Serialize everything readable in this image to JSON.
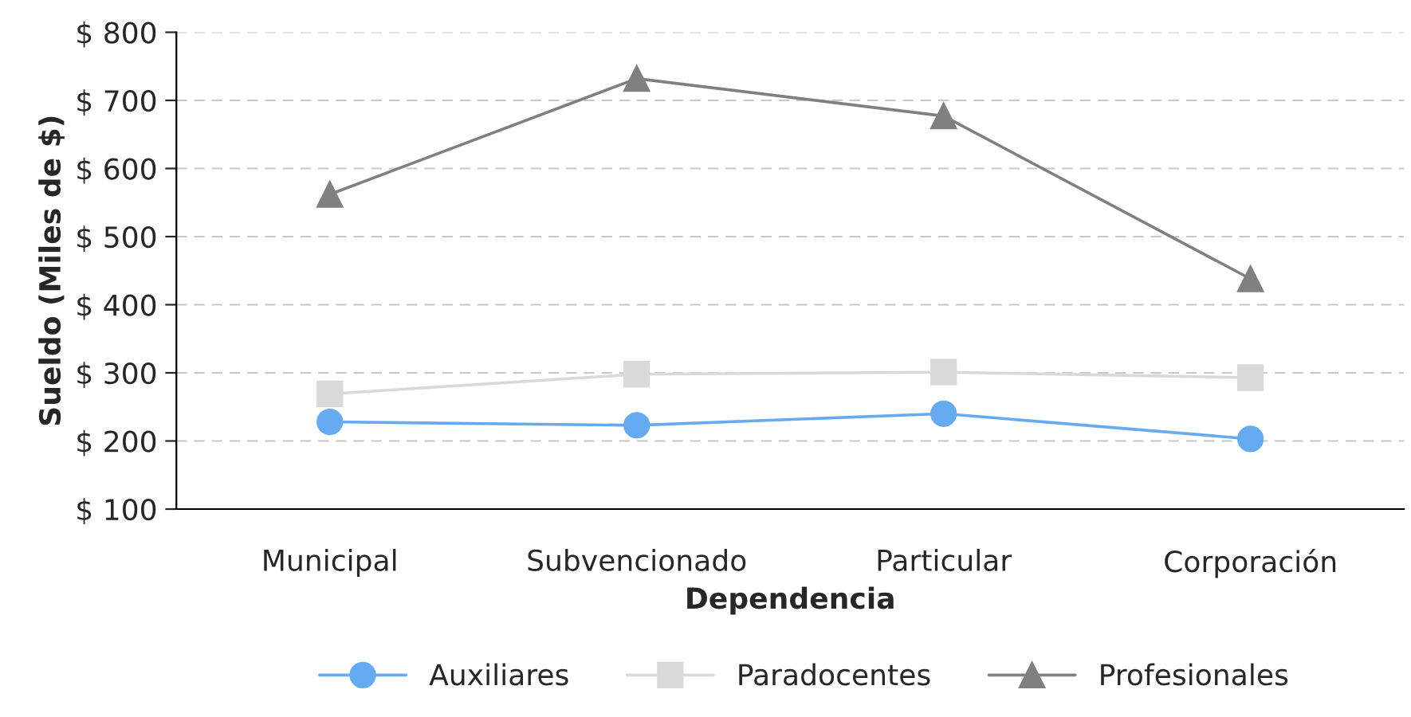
{
  "chart_data": {
    "type": "line",
    "xlabel": "Dependencia",
    "ylabel": "Sueldo (Miles de $)",
    "categories": [
      "Municipal",
      "Subvencionado",
      "Particular",
      "Corporación"
    ],
    "series": [
      {
        "name": "Auxiliares",
        "color": "#66aaf2",
        "marker": "circle",
        "values": [
          228,
          223,
          240,
          203
        ]
      },
      {
        "name": "Paradocentes",
        "color": "#d9d9d9",
        "marker": "square",
        "values": [
          269,
          298,
          301,
          293
        ]
      },
      {
        "name": "Profesionales",
        "color": "#808080",
        "marker": "triangle",
        "values": [
          562,
          732,
          677,
          438
        ]
      }
    ],
    "ylim": [
      100,
      800
    ],
    "yticks": [
      {
        "value": 100,
        "label": "$ 100"
      },
      {
        "value": 200,
        "label": "$ 200"
      },
      {
        "value": 300,
        "label": "$ 300"
      },
      {
        "value": 400,
        "label": "$ 400"
      },
      {
        "value": 500,
        "label": "$ 500"
      },
      {
        "value": 600,
        "label": "$ 600"
      },
      {
        "value": 700,
        "label": "$ 700"
      },
      {
        "value": 800,
        "label": "$ 800"
      }
    ],
    "grid": "y",
    "legend": "bottom"
  }
}
